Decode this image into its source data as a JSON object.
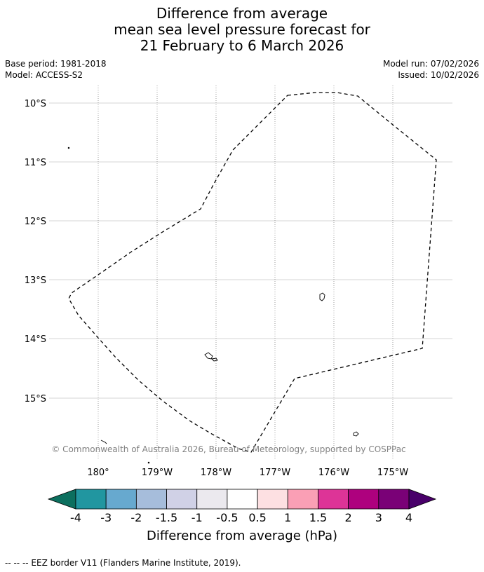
{
  "title": {
    "line1": "Difference from average",
    "line2": "mean sea level pressure forecast for",
    "line3": "21 February to 6 March 2026"
  },
  "meta": {
    "base_period": "Base period: 1981-2018",
    "model": "Model: ACCESS-S2",
    "model_run": "Model run: 07/02/2026",
    "issued": "Issued: 10/02/2026"
  },
  "map": {
    "lat_labels": [
      "10°S",
      "11°S",
      "12°S",
      "13°S",
      "14°S",
      "15°S"
    ],
    "lon_labels": [
      "180°",
      "179°W",
      "178°W",
      "177°W",
      "176°W",
      "175°W"
    ],
    "credit": "© Commonwealth of Australia 2026, Bureau of Meteorology, supported by COSPPac"
  },
  "colorbar": {
    "title": "Difference from average (hPa)",
    "tick_labels": [
      "-4",
      "-3",
      "-2",
      "-1.5",
      "-1",
      "-0.5",
      "0.5",
      "1",
      "1.5",
      "2",
      "3",
      "4"
    ],
    "colors": [
      "#0c6f5e",
      "#2196a0",
      "#67a9cf",
      "#a6bddb",
      "#d0d1e6",
      "#ebe9ee",
      "#ffffff",
      "#fde0e2",
      "#fa9fb5",
      "#dd3497",
      "#ae017e",
      "#7a0177",
      "#49006a"
    ]
  },
  "footer": {
    "legend": "--  --  -- EEZ border V11 (Flanders Marine Institute, 2019)."
  }
}
